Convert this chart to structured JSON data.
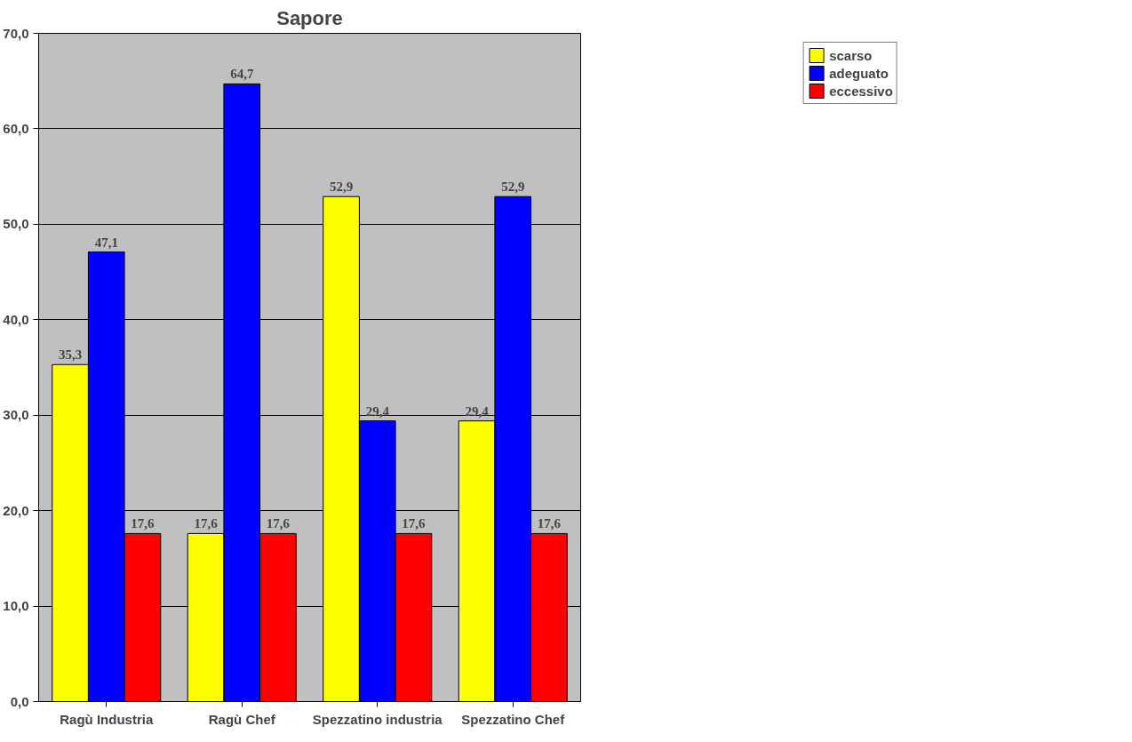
{
  "chart_data": {
    "type": "bar",
    "title": "Sapore",
    "categories": [
      "Ragù Industria",
      "Ragù Chef",
      "Spezzatino industria",
      "Spezzatino Chef"
    ],
    "series": [
      {
        "name": "scarso",
        "color": "#ffff00",
        "values": [
          35.3,
          17.6,
          52.9,
          29.4
        ],
        "value_labels": [
          "35,3",
          "17,6",
          "52,9",
          "29,4"
        ]
      },
      {
        "name": "adeguato",
        "color": "#0000ff",
        "values": [
          47.1,
          64.7,
          29.4,
          52.9
        ],
        "value_labels": [
          "47,1",
          "64,7",
          "29,4",
          "52,9"
        ]
      },
      {
        "name": "eccessivo",
        "color": "#ff0000",
        "values": [
          17.6,
          17.6,
          17.6,
          17.6
        ],
        "value_labels": [
          "17,6",
          "17,6",
          "17,6",
          "17,6"
        ]
      }
    ],
    "ylim": [
      0,
      70
    ],
    "yticks": [
      {
        "value": 0,
        "label": "0,0"
      },
      {
        "value": 10,
        "label": "10,0"
      },
      {
        "value": 20,
        "label": "20,0"
      },
      {
        "value": 30,
        "label": "30,0"
      },
      {
        "value": 40,
        "label": "40,0"
      },
      {
        "value": 50,
        "label": "50,0"
      },
      {
        "value": 60,
        "label": "60,0"
      },
      {
        "value": 70,
        "label": "70,0"
      }
    ],
    "grid": "y",
    "legend": "top right"
  }
}
